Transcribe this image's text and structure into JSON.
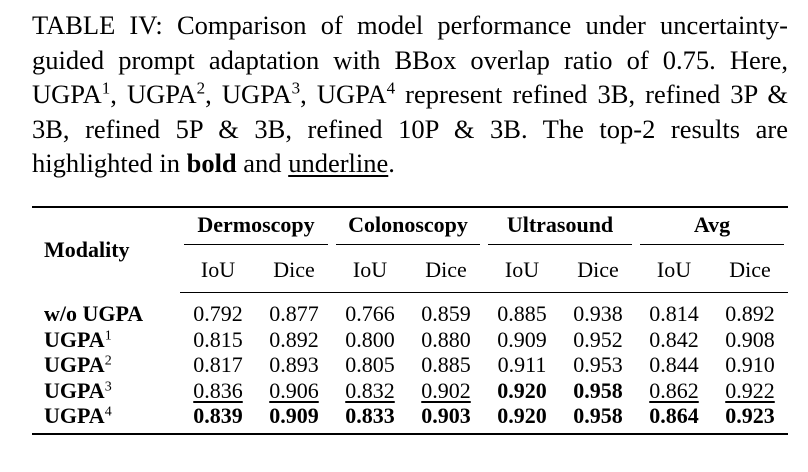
{
  "caption": {
    "prefix": "TABLE IV: Comparison of model performance under uncertainty-guided prompt adaptation with BBox overlap ratio of 0.75. Here, ",
    "method_name": "UGPA",
    "sup1": "1",
    "sup2": "2",
    "sup3": "3",
    "sup4": "4",
    "sep1": ", ",
    "sep2": ", ",
    "sep3": ", ",
    "mid": " represent refined 3B, refined 3P & 3B, refined 5P & 3B, refined 10P & 3B. The top-2 results are highlighted in ",
    "bold_word": "bold",
    "and_word": " and ",
    "underline_word": "underline",
    "end": "."
  },
  "table": {
    "modality_header": "Modality",
    "groups": [
      "Dermoscopy",
      "Colonoscopy",
      "Ultrasound",
      "Avg"
    ],
    "sub_headers": [
      "IoU",
      "Dice"
    ],
    "rows": [
      {
        "name": "w/o UGPA",
        "sup": "",
        "values": [
          "0.792",
          "0.877",
          "0.766",
          "0.859",
          "0.885",
          "0.938",
          "0.814",
          "0.892"
        ],
        "style": [
          "",
          "",
          "",
          "",
          "",
          "",
          "",
          ""
        ]
      },
      {
        "name": "UGPA",
        "sup": "1",
        "values": [
          "0.815",
          "0.892",
          "0.800",
          "0.880",
          "0.909",
          "0.952",
          "0.842",
          "0.908"
        ],
        "style": [
          "",
          "",
          "",
          "",
          "",
          "",
          "",
          ""
        ]
      },
      {
        "name": "UGPA",
        "sup": "2",
        "values": [
          "0.817",
          "0.893",
          "0.805",
          "0.885",
          "0.911",
          "0.953",
          "0.844",
          "0.910"
        ],
        "style": [
          "",
          "",
          "",
          "",
          "",
          "",
          "",
          ""
        ]
      },
      {
        "name": "UGPA",
        "sup": "3",
        "values": [
          "0.836",
          "0.906",
          "0.832",
          "0.902",
          "0.920",
          "0.958",
          "0.862",
          "0.922"
        ],
        "style": [
          "u",
          "u",
          "u",
          "u",
          "b",
          "b",
          "u",
          "u"
        ]
      },
      {
        "name": "UGPA",
        "sup": "4",
        "values": [
          "0.839",
          "0.909",
          "0.833",
          "0.903",
          "0.920",
          "0.958",
          "0.864",
          "0.923"
        ],
        "style": [
          "b",
          "b",
          "b",
          "b",
          "b",
          "b",
          "b",
          "b"
        ]
      }
    ]
  }
}
